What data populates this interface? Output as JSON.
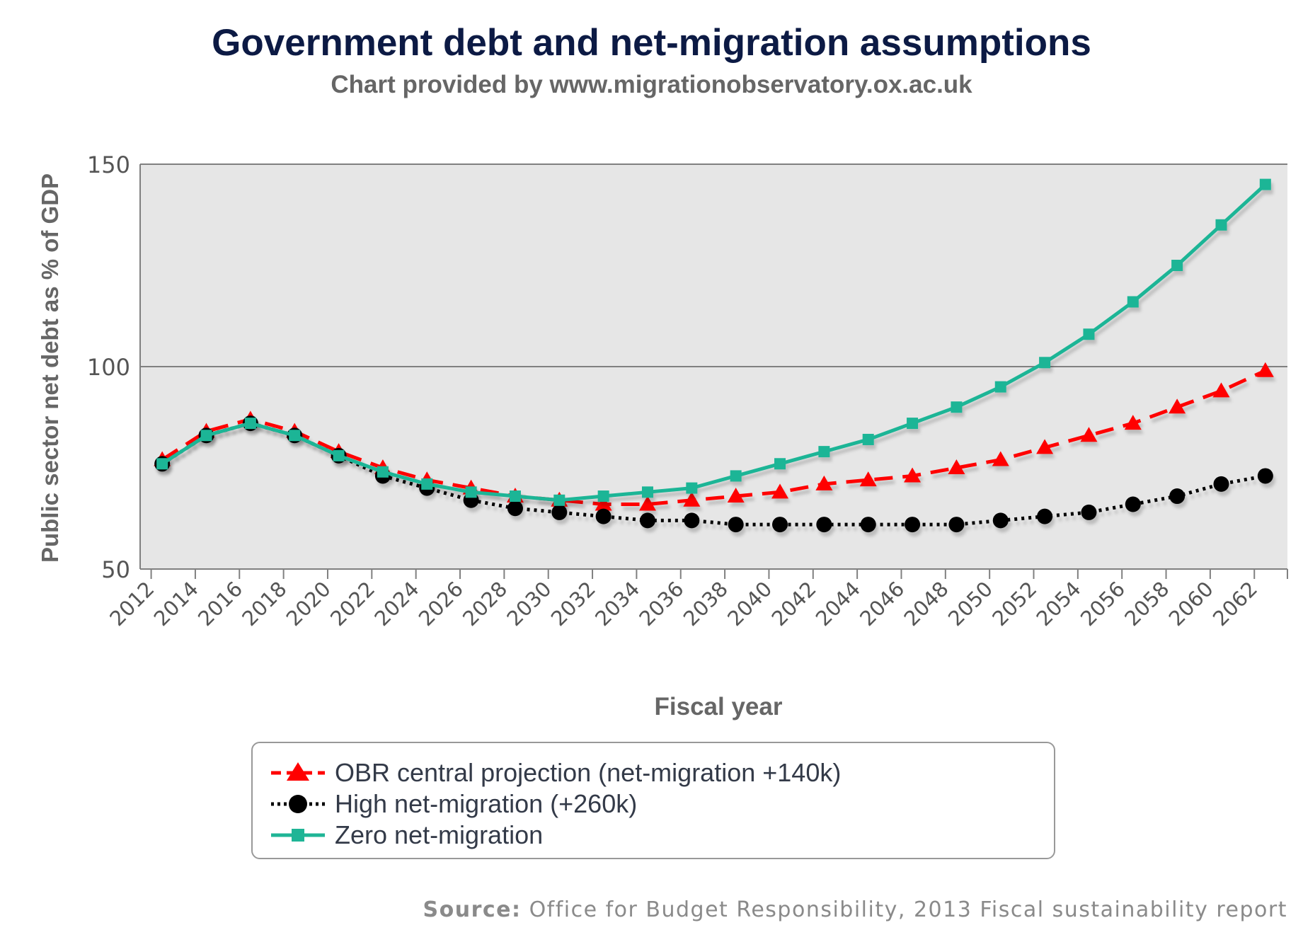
{
  "header": {
    "title": "Government debt and net-migration assumptions",
    "subtitle": "Chart provided by www.migrationobservatory.ox.ac.uk"
  },
  "source": {
    "label": "Source:",
    "text": "Office for Budget Responsibility, 2013 Fiscal sustainability report"
  },
  "colors": {
    "plot_background": "#e6e6e6",
    "obr": "#ff0000",
    "high": "#000000",
    "zero": "#1fb596",
    "axis_text": "#666666"
  },
  "chart_data": {
    "type": "line",
    "xlabel": "Fiscal year",
    "ylabel": "Public sector net debt as % of GDP",
    "ylim": [
      50,
      150
    ],
    "yticks": [
      50,
      100,
      150
    ],
    "xlim": [
      2011.5,
      2063.5
    ],
    "xticks": [
      2012,
      2014,
      2016,
      2018,
      2020,
      2022,
      2024,
      2026,
      2028,
      2030,
      2032,
      2034,
      2036,
      2038,
      2040,
      2042,
      2044,
      2046,
      2048,
      2050,
      2052,
      2054,
      2056,
      2058,
      2060,
      2062
    ],
    "grid": "horizontal",
    "legend_position": "bottom",
    "x": [
      2012.5,
      2014.5,
      2016.5,
      2018.5,
      2020.5,
      2022.5,
      2024.5,
      2026.5,
      2028.5,
      2030.5,
      2032.5,
      2034.5,
      2036.5,
      2038.5,
      2040.5,
      2042.5,
      2044.5,
      2046.5,
      2048.5,
      2050.5,
      2052.5,
      2054.5,
      2056.5,
      2058.5,
      2060.5,
      2062.5
    ],
    "series": [
      {
        "name": "OBR central projection (net-migration +140k)",
        "color": "#ff0000",
        "marker": "triangle",
        "line": "dashed",
        "values": [
          77,
          84,
          87,
          84,
          79,
          75,
          72,
          70,
          68,
          67,
          66,
          66,
          67,
          68,
          69,
          71,
          72,
          73,
          75,
          77,
          80,
          83,
          86,
          90,
          94,
          99
        ]
      },
      {
        "name": "High net-migration (+260k)",
        "color": "#000000",
        "marker": "circle",
        "line": "dotted",
        "values": [
          76,
          83,
          86,
          83,
          78,
          73,
          70,
          67,
          65,
          64,
          63,
          62,
          62,
          61,
          61,
          61,
          61,
          61,
          61,
          62,
          63,
          64,
          66,
          68,
          71,
          73
        ]
      },
      {
        "name": "Zero net-migration",
        "color": "#1fb596",
        "marker": "square",
        "line": "solid",
        "values": [
          76,
          83,
          86,
          83,
          78,
          74,
          71,
          69,
          68,
          67,
          68,
          69,
          70,
          73,
          76,
          79,
          82,
          86,
          90,
          95,
          101,
          108,
          116,
          125,
          135,
          145
        ]
      }
    ]
  }
}
